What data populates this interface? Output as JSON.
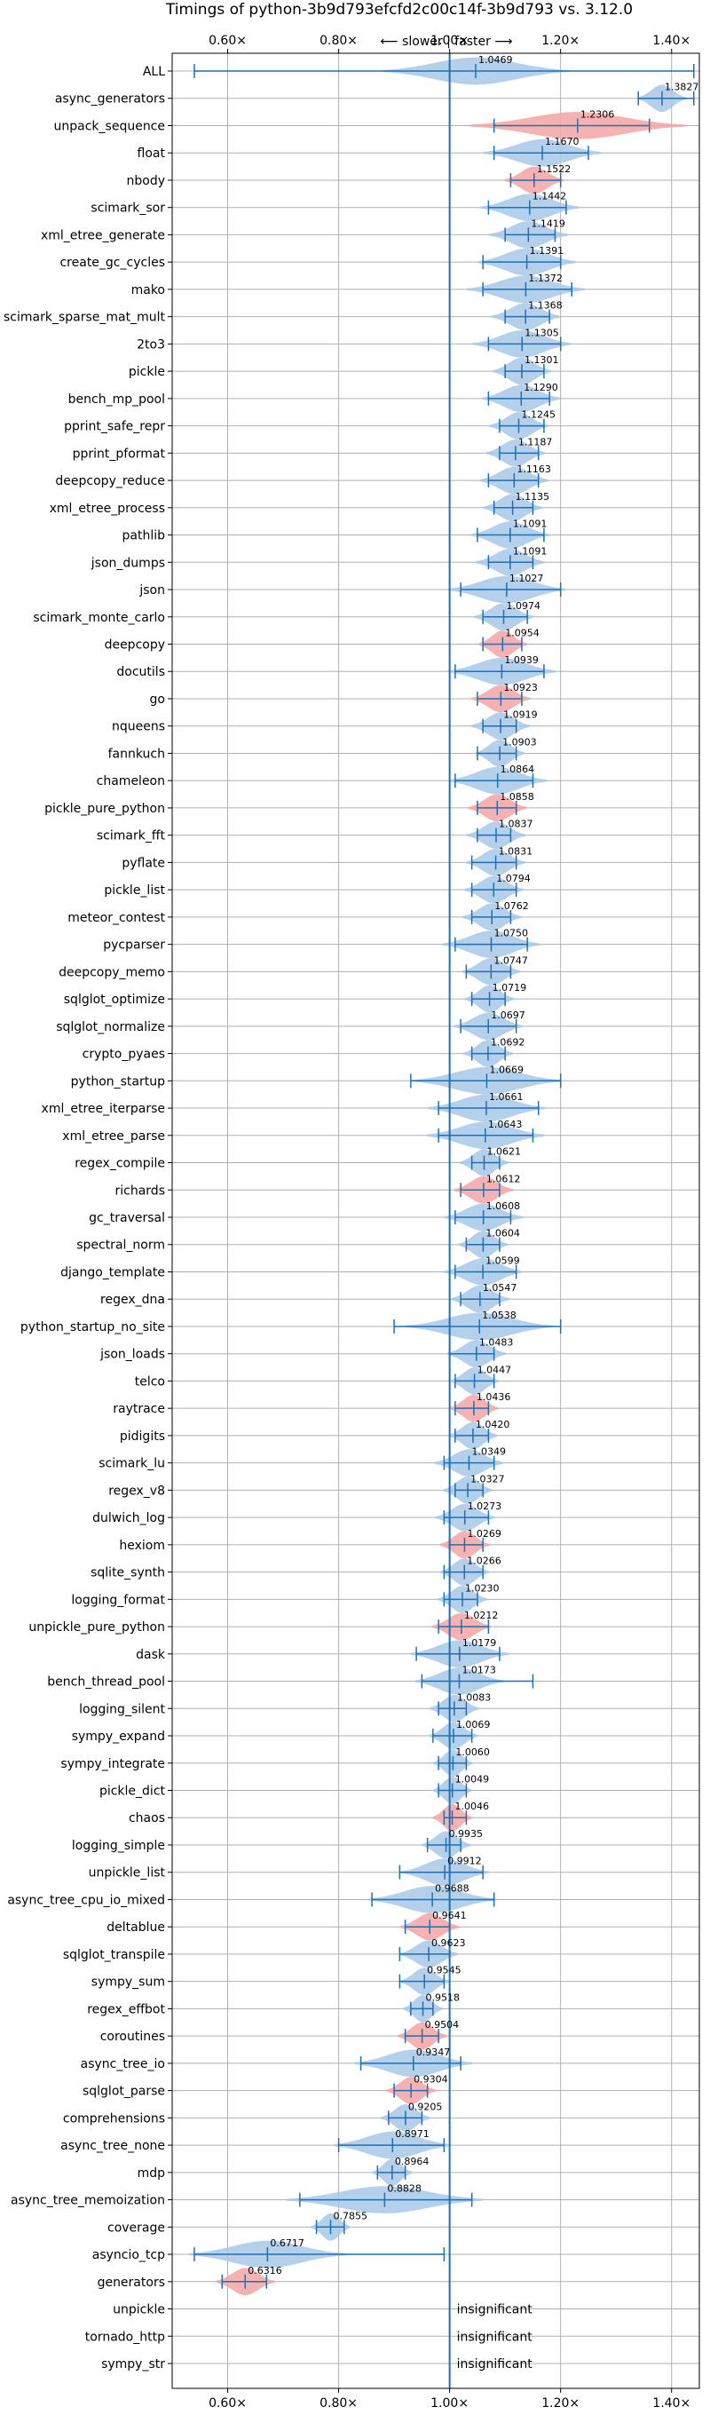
{
  "chart_data": {
    "type": "violin",
    "title": "Timings of python-3b9d793efcfd2c00c14f-3b9d793 vs. 3.12.0",
    "axis_annotation": "⟵ slower | faster ⟶",
    "xlim": [
      0.5,
      1.45
    ],
    "x_ticks": [
      0.6,
      0.8,
      1.0,
      1.2,
      1.4
    ],
    "x_tick_labels": [
      "0.60×",
      "0.80×",
      "1.00×",
      "1.20×",
      "1.40×"
    ],
    "grid": true,
    "reference_line": 1.0,
    "colors": {
      "normal": "#a8c8e8",
      "significant": "#f4a4a4",
      "line": "#1f6fb4",
      "grid": "#b0b0b0"
    },
    "insignificant_label": "insignificant",
    "benchmarks": [
      {
        "name": "ALL",
        "mean": 1.0469,
        "min": 0.54,
        "max": 1.44,
        "width": 0.19,
        "highlight": false
      },
      {
        "name": "async_generators",
        "mean": 1.3827,
        "min": 1.34,
        "max": 1.44,
        "width": 0.05,
        "highlight": false
      },
      {
        "name": "unpack_sequence",
        "mean": 1.2306,
        "min": 1.08,
        "max": 1.36,
        "width": 0.22,
        "highlight": true
      },
      {
        "name": "float",
        "mean": 1.167,
        "min": 1.08,
        "max": 1.25,
        "width": 0.12,
        "highlight": false
      },
      {
        "name": "nbody",
        "mean": 1.1522,
        "min": 1.11,
        "max": 1.2,
        "width": 0.06,
        "highlight": true
      },
      {
        "name": "scimark_sor",
        "mean": 1.1442,
        "min": 1.07,
        "max": 1.21,
        "width": 0.1,
        "highlight": false
      },
      {
        "name": "xml_etree_generate",
        "mean": 1.1419,
        "min": 1.1,
        "max": 1.19,
        "width": 0.08,
        "highlight": false
      },
      {
        "name": "create_gc_cycles",
        "mean": 1.1391,
        "min": 1.06,
        "max": 1.2,
        "width": 0.1,
        "highlight": false
      },
      {
        "name": "mako",
        "mean": 1.1372,
        "min": 1.06,
        "max": 1.22,
        "width": 0.12,
        "highlight": false
      },
      {
        "name": "scimark_sparse_mat_mult",
        "mean": 1.1368,
        "min": 1.1,
        "max": 1.18,
        "width": 0.07,
        "highlight": false
      },
      {
        "name": "2to3",
        "mean": 1.1305,
        "min": 1.07,
        "max": 1.2,
        "width": 0.1,
        "highlight": false
      },
      {
        "name": "pickle",
        "mean": 1.1301,
        "min": 1.1,
        "max": 1.17,
        "width": 0.06,
        "highlight": false
      },
      {
        "name": "bench_mp_pool",
        "mean": 1.129,
        "min": 1.07,
        "max": 1.18,
        "width": 0.08,
        "highlight": false
      },
      {
        "name": "pprint_safe_repr",
        "mean": 1.1245,
        "min": 1.09,
        "max": 1.17,
        "width": 0.06,
        "highlight": false
      },
      {
        "name": "pprint_pformat",
        "mean": 1.1187,
        "min": 1.09,
        "max": 1.16,
        "width": 0.06,
        "highlight": false
      },
      {
        "name": "deepcopy_reduce",
        "mean": 1.1163,
        "min": 1.07,
        "max": 1.16,
        "width": 0.07,
        "highlight": false
      },
      {
        "name": "xml_etree_process",
        "mean": 1.1135,
        "min": 1.08,
        "max": 1.15,
        "width": 0.06,
        "highlight": false
      },
      {
        "name": "pathlib",
        "mean": 1.1091,
        "min": 1.05,
        "max": 1.17,
        "width": 0.08,
        "highlight": false
      },
      {
        "name": "json_dumps",
        "mean": 1.1091,
        "min": 1.07,
        "max": 1.15,
        "width": 0.07,
        "highlight": false
      },
      {
        "name": "json",
        "mean": 1.1027,
        "min": 1.02,
        "max": 1.2,
        "width": 0.12,
        "highlight": false
      },
      {
        "name": "scimark_monte_carlo",
        "mean": 1.0974,
        "min": 1.06,
        "max": 1.14,
        "width": 0.06,
        "highlight": false
      },
      {
        "name": "deepcopy",
        "mean": 1.0954,
        "min": 1.06,
        "max": 1.13,
        "width": 0.05,
        "highlight": true
      },
      {
        "name": "docutils",
        "mean": 1.0939,
        "min": 1.01,
        "max": 1.17,
        "width": 0.11,
        "highlight": false
      },
      {
        "name": "go",
        "mean": 1.0923,
        "min": 1.05,
        "max": 1.13,
        "width": 0.06,
        "highlight": true
      },
      {
        "name": "nqueens",
        "mean": 1.0919,
        "min": 1.06,
        "max": 1.12,
        "width": 0.06,
        "highlight": false
      },
      {
        "name": "fannkuch",
        "mean": 1.0903,
        "min": 1.05,
        "max": 1.12,
        "width": 0.05,
        "highlight": false
      },
      {
        "name": "chameleon",
        "mean": 1.0864,
        "min": 1.01,
        "max": 1.15,
        "width": 0.1,
        "highlight": false
      },
      {
        "name": "pickle_pure_python",
        "mean": 1.0858,
        "min": 1.05,
        "max": 1.12,
        "width": 0.06,
        "highlight": true
      },
      {
        "name": "scimark_fft",
        "mean": 1.0837,
        "min": 1.05,
        "max": 1.11,
        "width": 0.06,
        "highlight": false
      },
      {
        "name": "pyflate",
        "mean": 1.0831,
        "min": 1.04,
        "max": 1.12,
        "width": 0.06,
        "highlight": false
      },
      {
        "name": "pickle_list",
        "mean": 1.0794,
        "min": 1.04,
        "max": 1.12,
        "width": 0.06,
        "highlight": false
      },
      {
        "name": "meteor_contest",
        "mean": 1.0762,
        "min": 1.04,
        "max": 1.11,
        "width": 0.06,
        "highlight": false
      },
      {
        "name": "pycparser",
        "mean": 1.075,
        "min": 1.01,
        "max": 1.14,
        "width": 0.1,
        "highlight": false
      },
      {
        "name": "deepcopy_memo",
        "mean": 1.0747,
        "min": 1.03,
        "max": 1.11,
        "width": 0.06,
        "highlight": false
      },
      {
        "name": "sqlglot_optimize",
        "mean": 1.0719,
        "min": 1.04,
        "max": 1.1,
        "width": 0.05,
        "highlight": false
      },
      {
        "name": "sqlglot_normalize",
        "mean": 1.0697,
        "min": 1.02,
        "max": 1.12,
        "width": 0.07,
        "highlight": false
      },
      {
        "name": "crypto_pyaes",
        "mean": 1.0692,
        "min": 1.04,
        "max": 1.1,
        "width": 0.05,
        "highlight": false
      },
      {
        "name": "python_startup",
        "mean": 1.0669,
        "min": 0.93,
        "max": 1.2,
        "width": 0.15,
        "highlight": false
      },
      {
        "name": "xml_etree_iterparse",
        "mean": 1.0661,
        "min": 0.98,
        "max": 1.16,
        "width": 0.12,
        "highlight": false
      },
      {
        "name": "xml_etree_parse",
        "mean": 1.0643,
        "min": 0.98,
        "max": 1.15,
        "width": 0.12,
        "highlight": false
      },
      {
        "name": "regex_compile",
        "mean": 1.0621,
        "min": 1.04,
        "max": 1.09,
        "width": 0.05,
        "highlight": false
      },
      {
        "name": "richards",
        "mean": 1.0612,
        "min": 1.02,
        "max": 1.09,
        "width": 0.06,
        "highlight": true
      },
      {
        "name": "gc_traversal",
        "mean": 1.0608,
        "min": 1.01,
        "max": 1.11,
        "width": 0.08,
        "highlight": false
      },
      {
        "name": "spectral_norm",
        "mean": 1.0604,
        "min": 1.03,
        "max": 1.09,
        "width": 0.05,
        "highlight": false
      },
      {
        "name": "django_template",
        "mean": 1.0599,
        "min": 1.01,
        "max": 1.12,
        "width": 0.08,
        "highlight": false
      },
      {
        "name": "regex_dna",
        "mean": 1.0547,
        "min": 1.02,
        "max": 1.09,
        "width": 0.06,
        "highlight": false
      },
      {
        "name": "python_startup_no_site",
        "mean": 1.0538,
        "min": 0.9,
        "max": 1.2,
        "width": 0.15,
        "highlight": false
      },
      {
        "name": "json_loads",
        "mean": 1.0483,
        "min": 1.0,
        "max": 1.08,
        "width": 0.06,
        "highlight": false
      },
      {
        "name": "telco",
        "mean": 1.0447,
        "min": 1.01,
        "max": 1.08,
        "width": 0.05,
        "highlight": false
      },
      {
        "name": "raytrace",
        "mean": 1.0436,
        "min": 1.01,
        "max": 1.07,
        "width": 0.05,
        "highlight": true
      },
      {
        "name": "pidigits",
        "mean": 1.042,
        "min": 1.01,
        "max": 1.07,
        "width": 0.05,
        "highlight": false
      },
      {
        "name": "scimark_lu",
        "mean": 1.0349,
        "min": 0.99,
        "max": 1.08,
        "width": 0.07,
        "highlight": false
      },
      {
        "name": "regex_v8",
        "mean": 1.0327,
        "min": 1.01,
        "max": 1.06,
        "width": 0.05,
        "highlight": false
      },
      {
        "name": "dulwich_log",
        "mean": 1.0273,
        "min": 0.99,
        "max": 1.07,
        "width": 0.06,
        "highlight": false
      },
      {
        "name": "hexiom",
        "mean": 1.0269,
        "min": 1.0,
        "max": 1.06,
        "width": 0.05,
        "highlight": true
      },
      {
        "name": "sqlite_synth",
        "mean": 1.0266,
        "min": 0.99,
        "max": 1.06,
        "width": 0.05,
        "highlight": false
      },
      {
        "name": "logging_format",
        "mean": 1.023,
        "min": 0.99,
        "max": 1.05,
        "width": 0.05,
        "highlight": false
      },
      {
        "name": "unpickle_pure_python",
        "mean": 1.0212,
        "min": 0.98,
        "max": 1.07,
        "width": 0.06,
        "highlight": true
      },
      {
        "name": "dask",
        "mean": 1.0179,
        "min": 0.94,
        "max": 1.09,
        "width": 0.1,
        "highlight": false
      },
      {
        "name": "bench_thread_pool",
        "mean": 1.0173,
        "min": 0.95,
        "max": 1.15,
        "width": 0.09,
        "highlight": false
      },
      {
        "name": "logging_silent",
        "mean": 1.0083,
        "min": 0.98,
        "max": 1.03,
        "width": 0.05,
        "highlight": false
      },
      {
        "name": "sympy_expand",
        "mean": 1.0069,
        "min": 0.97,
        "max": 1.04,
        "width": 0.05,
        "highlight": false
      },
      {
        "name": "sympy_integrate",
        "mean": 1.006,
        "min": 0.98,
        "max": 1.03,
        "width": 0.04,
        "highlight": false
      },
      {
        "name": "pickle_dict",
        "mean": 1.0049,
        "min": 0.98,
        "max": 1.03,
        "width": 0.04,
        "highlight": false
      },
      {
        "name": "chaos",
        "mean": 1.0046,
        "min": 0.99,
        "max": 1.03,
        "width": 0.04,
        "highlight": true
      },
      {
        "name": "logging_simple",
        "mean": 0.9935,
        "min": 0.96,
        "max": 1.02,
        "width": 0.05,
        "highlight": false
      },
      {
        "name": "unpickle_list",
        "mean": 0.9912,
        "min": 0.91,
        "max": 1.06,
        "width": 0.09,
        "highlight": false
      },
      {
        "name": "async_tree_cpu_io_mixed",
        "mean": 0.9688,
        "min": 0.86,
        "max": 1.08,
        "width": 0.13,
        "highlight": false
      },
      {
        "name": "deltablue",
        "mean": 0.9641,
        "min": 0.92,
        "max": 1.0,
        "width": 0.06,
        "highlight": true
      },
      {
        "name": "sqlglot_transpile",
        "mean": 0.9623,
        "min": 0.91,
        "max": 1.0,
        "width": 0.06,
        "highlight": false
      },
      {
        "name": "sympy_sum",
        "mean": 0.9545,
        "min": 0.91,
        "max": 0.99,
        "width": 0.05,
        "highlight": false
      },
      {
        "name": "regex_effbot",
        "mean": 0.9518,
        "min": 0.93,
        "max": 0.97,
        "width": 0.04,
        "highlight": false
      },
      {
        "name": "coroutines",
        "mean": 0.9504,
        "min": 0.92,
        "max": 0.98,
        "width": 0.05,
        "highlight": true
      },
      {
        "name": "async_tree_io",
        "mean": 0.9347,
        "min": 0.84,
        "max": 1.02,
        "width": 0.12,
        "highlight": false
      },
      {
        "name": "sqlglot_parse",
        "mean": 0.9304,
        "min": 0.9,
        "max": 0.96,
        "width": 0.05,
        "highlight": true
      },
      {
        "name": "comprehensions",
        "mean": 0.9205,
        "min": 0.89,
        "max": 0.95,
        "width": 0.05,
        "highlight": false
      },
      {
        "name": "async_tree_none",
        "mean": 0.8971,
        "min": 0.8,
        "max": 0.99,
        "width": 0.12,
        "highlight": false
      },
      {
        "name": "mdp",
        "mean": 0.8964,
        "min": 0.87,
        "max": 0.92,
        "width": 0.04,
        "highlight": false
      },
      {
        "name": "async_tree_memoization",
        "mean": 0.8828,
        "min": 0.73,
        "max": 1.04,
        "width": 0.2,
        "highlight": false
      },
      {
        "name": "coverage",
        "mean": 0.7855,
        "min": 0.76,
        "max": 0.81,
        "width": 0.04,
        "highlight": false
      },
      {
        "name": "asyncio_tcp",
        "mean": 0.6717,
        "min": 0.54,
        "max": 0.99,
        "width": 0.16,
        "highlight": false
      },
      {
        "name": "generators",
        "mean": 0.6316,
        "min": 0.59,
        "max": 0.67,
        "width": 0.06,
        "highlight": true
      },
      {
        "name": "unpickle",
        "insignificant": true
      },
      {
        "name": "tornado_http",
        "insignificant": true
      },
      {
        "name": "sympy_str",
        "insignificant": true
      }
    ]
  }
}
